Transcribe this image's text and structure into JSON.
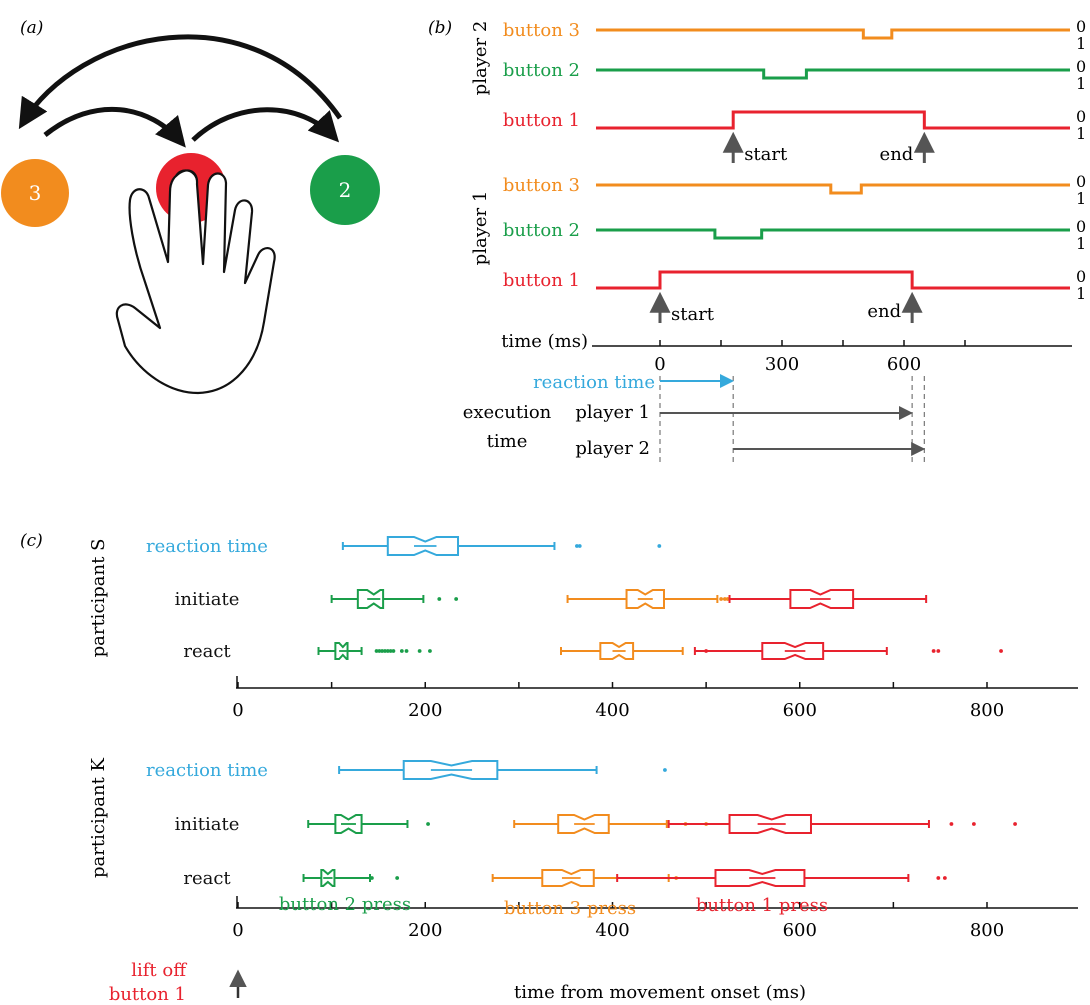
{
  "colors": {
    "button1": "#e8222e",
    "button2": "#1a9e4a",
    "button3": "#f28c1e",
    "reaction": "#35a9dc",
    "black": "#111111",
    "gray": "#555555"
  },
  "panel_a": {
    "label": "(a)",
    "buttons": [
      {
        "label": "3",
        "color_key": "button3"
      },
      {
        "label": "1",
        "color_key": "button1"
      },
      {
        "label": "2",
        "color_key": "button2"
      }
    ],
    "icons": [
      "curved-arrow-icon",
      "hand-icon"
    ]
  },
  "panel_b": {
    "label": "(b)",
    "player_labels": [
      "player 2",
      "player 1"
    ],
    "button_labels": [
      "button 3",
      "button 2",
      "button 1"
    ],
    "level_labels": [
      "0",
      "1"
    ],
    "start_label": "start",
    "end_label": "end",
    "time_label": "time (ms)",
    "ticks": [
      "0",
      "300",
      "600"
    ],
    "reaction_label": "reaction time",
    "execution_label_1": "execution",
    "execution_label_2": "time",
    "exec_player_labels": [
      "player 1",
      "player 2"
    ]
  },
  "chart_data": [
    {
      "type": "step",
      "panel": "b",
      "xlabel": "time (ms)",
      "xticks": [
        0,
        300,
        600
      ],
      "xlim": [
        0,
        750
      ],
      "traces": [
        {
          "player": "player 2",
          "name": "button 3",
          "color_key": "button3",
          "pressed_intervals": [
            [
              500,
              570
            ]
          ]
        },
        {
          "player": "player 2",
          "name": "button 2",
          "color_key": "button2",
          "pressed_intervals": [
            [
              255,
              360
            ]
          ]
        },
        {
          "player": "player 2",
          "name": "button 1",
          "color_key": "button1",
          "released_intervals": [
            [
              180,
              650
            ]
          ]
        },
        {
          "player": "player 1",
          "name": "button 3",
          "color_key": "button3",
          "pressed_intervals": [
            [
              420,
              495
            ]
          ]
        },
        {
          "player": "player 1",
          "name": "button 2",
          "color_key": "button2",
          "pressed_intervals": [
            [
              135,
              250
            ]
          ]
        },
        {
          "player": "player 1",
          "name": "button 1",
          "color_key": "button1",
          "released_intervals": [
            [
              0,
              620
            ]
          ]
        }
      ],
      "events": {
        "player 1": {
          "start": 0,
          "end": 620
        },
        "player 2": {
          "start": 180,
          "end": 650
        }
      },
      "intervals": {
        "reaction time": [
          0,
          180
        ],
        "execution time player 1": [
          0,
          620
        ],
        "execution time player 2": [
          180,
          650
        ]
      }
    },
    {
      "type": "boxplot",
      "panel": "c",
      "participant": "participant S",
      "xlim": [
        0,
        890
      ],
      "xticks": [
        0,
        200,
        400,
        600,
        800
      ],
      "rows": [
        {
          "name": "reaction time",
          "boxes": [
            {
              "color_key": "reaction",
              "whisker_low": 112,
              "q1": 160,
              "median": 200,
              "q3": 235,
              "whisker_high": 338,
              "notch": 12,
              "outliers": [
                362,
                365,
                450
              ]
            }
          ]
        },
        {
          "name": "initiate",
          "boxes": [
            {
              "color_key": "button2",
              "whisker_low": 100,
              "q1": 128,
              "median": 145,
              "q3": 155,
              "whisker_high": 198,
              "notch": 7,
              "outliers": [
                215,
                233
              ]
            },
            {
              "color_key": "button3",
              "whisker_low": 352,
              "q1": 415,
              "median": 435,
              "q3": 455,
              "whisker_high": 512,
              "notch": 8,
              "outliers": [
                516,
                520,
                523
              ]
            },
            {
              "color_key": "button1",
              "whisker_low": 525,
              "q1": 590,
              "median": 622,
              "q3": 657,
              "whisker_high": 735,
              "notch": 11,
              "outliers": []
            }
          ]
        },
        {
          "name": "react",
          "boxes": [
            {
              "color_key": "button2",
              "whisker_low": 86,
              "q1": 104,
              "median": 112,
              "q3": 117,
              "whisker_high": 132,
              "notch": 4,
              "outliers": [
                148,
                151,
                154,
                157,
                160,
                163,
                166,
                175,
                180,
                194,
                205
              ]
            },
            {
              "color_key": "button3",
              "whisker_low": 345,
              "q1": 387,
              "median": 407,
              "q3": 422,
              "whisker_high": 475,
              "notch": 7,
              "outliers": []
            },
            {
              "color_key": "button1",
              "whisker_low": 488,
              "q1": 560,
              "median": 595,
              "q3": 625,
              "whisker_high": 693,
              "notch": 11,
              "outliers": [
                500,
                743,
                748,
                815
              ]
            }
          ]
        }
      ]
    },
    {
      "type": "boxplot",
      "panel": "c",
      "participant": "participant K",
      "xlim": [
        0,
        890
      ],
      "xticks": [
        0,
        200,
        400,
        600,
        800
      ],
      "xlabel": "time from movement onset (ms)",
      "rows": [
        {
          "name": "reaction time",
          "boxes": [
            {
              "color_key": "reaction",
              "whisker_low": 108,
              "q1": 177,
              "median": 228,
              "q3": 277,
              "whisker_high": 383,
              "notch": 22,
              "outliers": [
                456
              ]
            }
          ]
        },
        {
          "name": "initiate",
          "boxes": [
            {
              "color_key": "button2",
              "whisker_low": 75,
              "q1": 104,
              "median": 118,
              "q3": 132,
              "whisker_high": 181,
              "notch": 8,
              "outliers": [
                203
              ]
            },
            {
              "color_key": "button3",
              "whisker_low": 295,
              "q1": 342,
              "median": 370,
              "q3": 396,
              "whisker_high": 458,
              "notch": 11,
              "outliers": [
                478,
                500
              ]
            },
            {
              "color_key": "button1",
              "whisker_low": 460,
              "q1": 525,
              "median": 570,
              "q3": 612,
              "whisker_high": 738,
              "notch": 15,
              "outliers": [
                762,
                786,
                830
              ]
            }
          ]
        },
        {
          "name": "react",
          "boxes": [
            {
              "color_key": "button2",
              "whisker_low": 70,
              "q1": 89,
              "median": 96,
              "q3": 103,
              "whisker_high": 141,
              "notch": 5,
              "outliers": [
                143,
                170
              ]
            },
            {
              "color_key": "button3",
              "whisker_low": 272,
              "q1": 325,
              "median": 356,
              "q3": 380,
              "whisker_high": 460,
              "notch": 10,
              "outliers": [
                468
              ]
            },
            {
              "color_key": "button1",
              "whisker_low": 405,
              "q1": 510,
              "median": 560,
              "q3": 605,
              "whisker_high": 716,
              "notch": 14,
              "outliers": [
                748,
                755
              ]
            }
          ]
        }
      ]
    }
  ],
  "panel_c": {
    "label": "(c)",
    "participant_labels": [
      "participant S",
      "participant K"
    ],
    "row_labels": [
      "reaction time",
      "initiate",
      "react"
    ],
    "press_labels": {
      "button2": "button 2 press",
      "button3": "button 3 press",
      "button1": "button 1 press"
    },
    "xlabel": "time from movement onset (ms)",
    "lift_off_label_1": "lift off",
    "lift_off_label_2": "button 1"
  }
}
